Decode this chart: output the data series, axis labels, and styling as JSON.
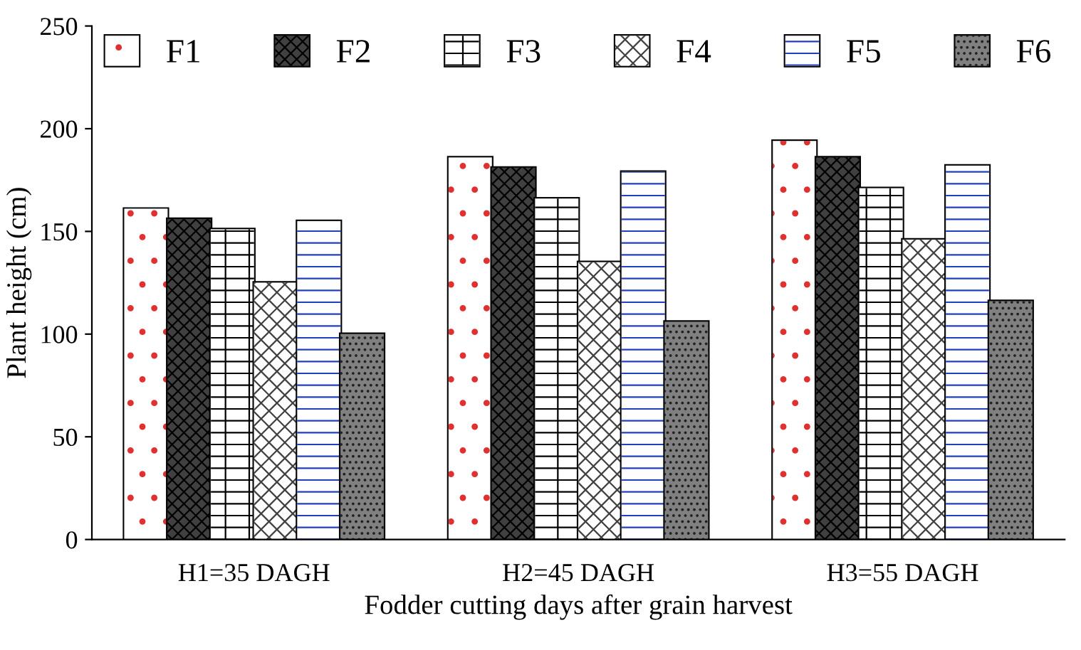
{
  "chart_data": {
    "type": "bar",
    "xlabel": "Fodder cutting days after grain harvest",
    "ylabel": "Plant height (cm)",
    "categories": [
      "H1=35 DAGH",
      "H2=45 DAGH",
      "H3=55 DAGH"
    ],
    "series": [
      {
        "name": "F1",
        "color": "#ffffff",
        "values": [
          161,
          186,
          194
        ]
      },
      {
        "name": "F2",
        "color": "#404040",
        "values": [
          156,
          181,
          186
        ]
      },
      {
        "name": "F3",
        "color": "#ffffff",
        "values": [
          151,
          166,
          171
        ]
      },
      {
        "name": "F4",
        "color": "#ffffff",
        "values": [
          125,
          135,
          146
        ]
      },
      {
        "name": "F5",
        "color": "#ffffff",
        "values": [
          155,
          179,
          182
        ]
      },
      {
        "name": "F6",
        "color": "#808080",
        "values": [
          100,
          106,
          116
        ]
      }
    ],
    "ylim": [
      0,
      250
    ],
    "yticks": [
      0,
      50,
      100,
      150,
      200,
      250
    ],
    "grid": false,
    "legend": "top"
  }
}
